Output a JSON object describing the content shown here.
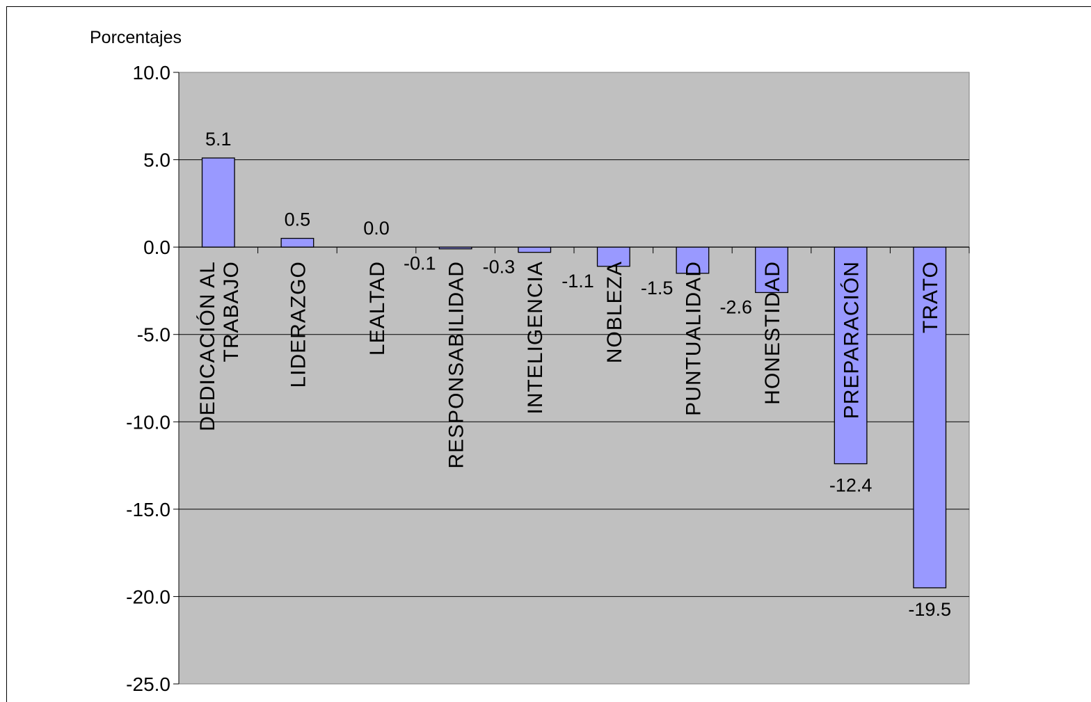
{
  "chart_data": {
    "type": "bar",
    "ylabel": "Porcentajes",
    "categories": [
      "DEDICACIÓN AL TRABAJO",
      "LIDERAZGO",
      "LEALTAD",
      "RESPONSABILIDAD",
      "INTELIGENCIA",
      "NOBLEZA",
      "PUNTUALIDAD",
      "HONESTIDAD",
      "PREPARACIÓN",
      "TRATO"
    ],
    "category_lines": [
      [
        "DEDICACIÓN AL",
        "TRABAJO"
      ],
      [
        "LIDERAZGO"
      ],
      [
        "LEALTAD"
      ],
      [
        "RESPONSABILIDAD"
      ],
      [
        "INTELIGENCIA"
      ],
      [
        "NOBLEZA"
      ],
      [
        "PUNTUALIDAD"
      ],
      [
        "HONESTIDAD"
      ],
      [
        "PREPARACIÓN"
      ],
      [
        "TRATO"
      ]
    ],
    "values": [
      5.1,
      0.5,
      0.0,
      -0.1,
      -0.3,
      -1.1,
      -1.5,
      -2.6,
      -12.4,
      -19.5
    ],
    "value_labels": [
      "5.1",
      "0.5",
      "0.0",
      "-0.1",
      "-0.3",
      "-1.1",
      "-1.5",
      "-2.6",
      "-12.4",
      "-19.5"
    ],
    "ylim": [
      -25,
      10
    ],
    "yticks": [
      10,
      5,
      0,
      -5,
      -10,
      -15,
      -20,
      -25
    ],
    "ytick_labels": [
      "10.0",
      "5.0",
      "0.0",
      "-5.0",
      "-10.0",
      "-15.0",
      "-20.0",
      "-25.0"
    ],
    "grid": true,
    "legend": "none",
    "colors": {
      "bar": "#9999ff",
      "plot_background": "#c0c0c0",
      "gridline": "#000000"
    }
  }
}
